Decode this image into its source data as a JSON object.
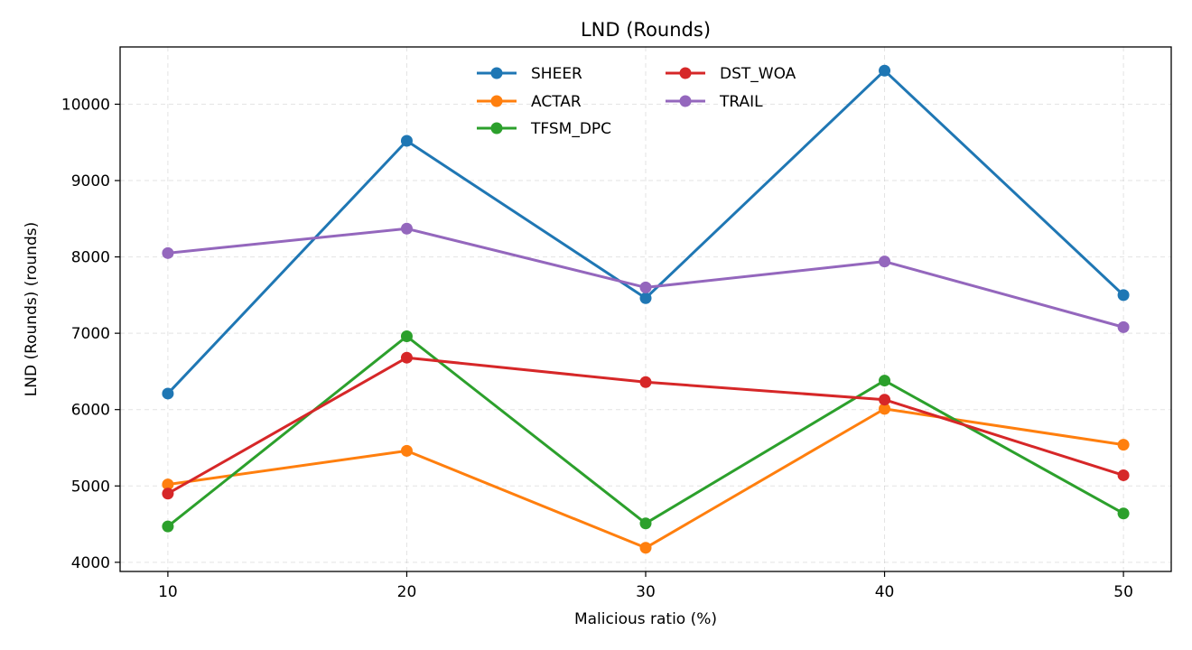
{
  "chart_data": {
    "type": "line",
    "title": "LND (Rounds)",
    "xlabel": "Malicious ratio (%)",
    "ylabel": "LND (Rounds) (rounds)",
    "x": [
      10,
      20,
      30,
      40,
      50
    ],
    "xticks": [
      "10",
      "20",
      "30",
      "40",
      "50"
    ],
    "yticks": [
      "4000",
      "5000",
      "6000",
      "7000",
      "8000",
      "9000",
      "10000"
    ],
    "xlim": [
      8,
      52
    ],
    "ylim": [
      3880,
      10750
    ],
    "grid": true,
    "legend_position": "top-center",
    "series": [
      {
        "name": "SHEER",
        "color": "#1f77b4",
        "values": [
          6210,
          9520,
          7460,
          10440,
          7500
        ]
      },
      {
        "name": "ACTAR",
        "color": "#ff7f0e",
        "values": [
          5020,
          5460,
          4190,
          6010,
          5540
        ]
      },
      {
        "name": "TFSM_DPC",
        "color": "#2ca02c",
        "values": [
          4470,
          6960,
          4510,
          6380,
          4640
        ]
      },
      {
        "name": "DST_WOA",
        "color": "#d62728",
        "values": [
          4900,
          6680,
          6360,
          6130,
          5140
        ]
      },
      {
        "name": "TRAIL",
        "color": "#9467bd",
        "values": [
          8050,
          8370,
          7600,
          7940,
          7080
        ]
      }
    ]
  }
}
